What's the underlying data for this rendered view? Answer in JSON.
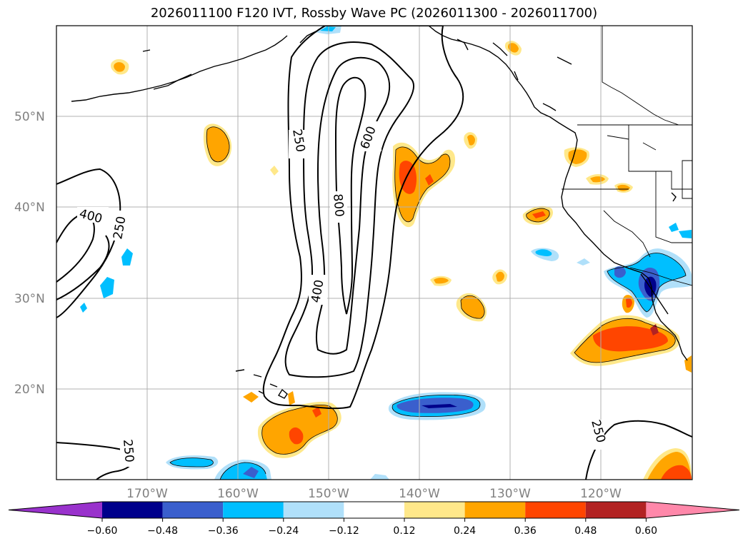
{
  "title": "2026011100 F120 IVT, Rossby Wave PC (2026011300 - 2026011700)",
  "map": {
    "projection": "plate-carree",
    "lon_range": [
      -180,
      -110
    ],
    "lat_range": [
      10,
      60
    ],
    "lat_labels": [
      "50°N",
      "40°N",
      "30°N",
      "20°N"
    ],
    "lon_labels": [
      "170°W",
      "160°W",
      "150°W",
      "140°W",
      "130°W",
      "120°W"
    ],
    "gridlines": true
  },
  "ivt_contours": {
    "color": "#000000",
    "levels": [
      250,
      400,
      600,
      800
    ],
    "labels": [
      {
        "text": "250"
      },
      {
        "text": "600"
      },
      {
        "text": "800"
      },
      {
        "text": "400"
      },
      {
        "text": "400"
      },
      {
        "text": "250"
      },
      {
        "text": "250"
      },
      {
        "text": "250"
      }
    ]
  },
  "colorbar": {
    "ticks": [
      "−0.60",
      "−0.48",
      "−0.36",
      "−0.24",
      "−0.12",
      "0.12",
      "0.24",
      "0.36",
      "0.48",
      "0.60"
    ],
    "colors": [
      "#9932cc",
      "#00008b",
      "#3a5fcd",
      "#00bfff",
      "#b0e0fa",
      "#ffffff",
      "#ffe88a",
      "#ffa500",
      "#ff4500",
      "#b22222",
      "#ff88aa"
    ]
  }
}
